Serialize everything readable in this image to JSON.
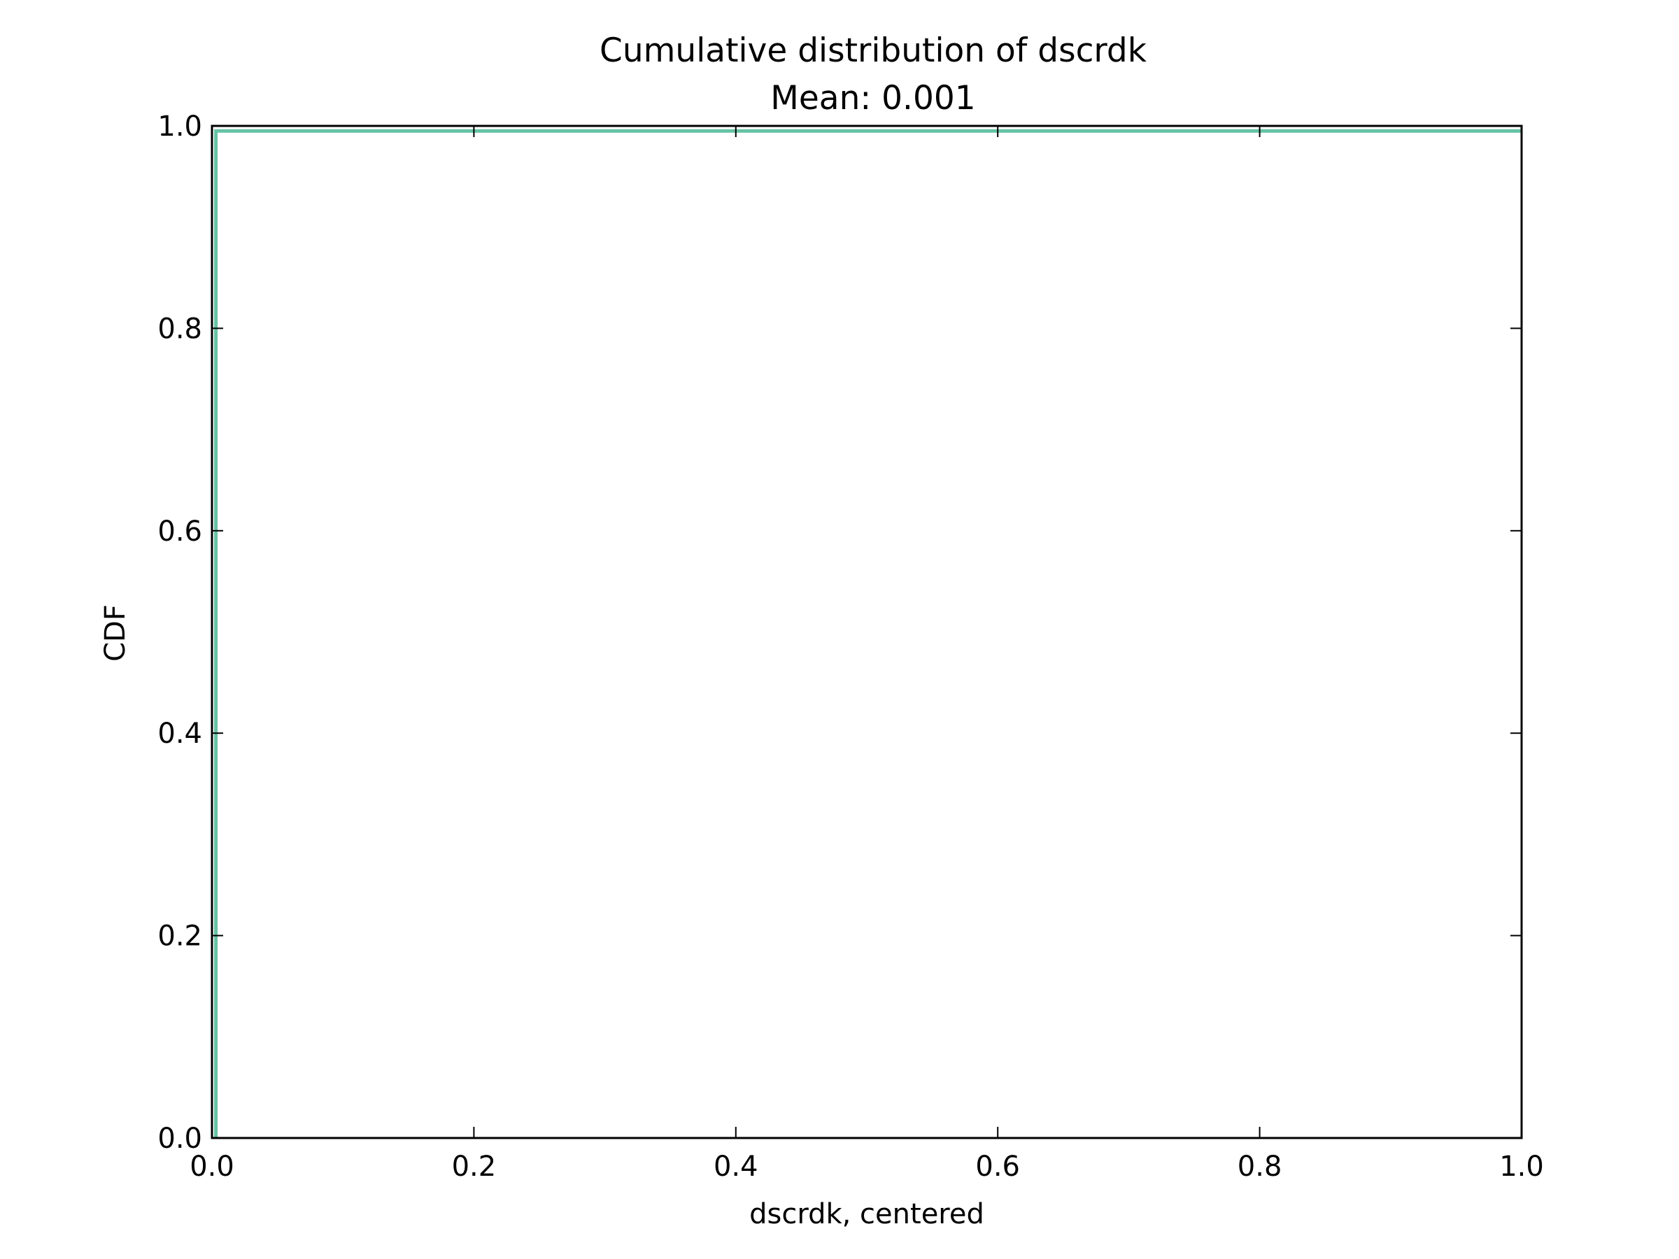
{
  "chart_data": {
    "type": "line",
    "title": "Cumulative distribution of dscrdk",
    "subtitle": "Mean: 0.001",
    "xlabel": "dscrdk, centered",
    "ylabel": "CDF",
    "xlim": [
      0.0,
      1.0
    ],
    "ylim": [
      0.0,
      1.0
    ],
    "x_ticks": [
      "0.0",
      "0.2",
      "0.4",
      "0.6",
      "0.8",
      "1.0"
    ],
    "y_ticks": [
      "0.0",
      "0.2",
      "0.4",
      "0.6",
      "0.8",
      "1.0"
    ],
    "grid": false,
    "series": [
      {
        "color": "#66c2a5",
        "x": [
          0.003,
          0.003,
          1.0
        ],
        "y": [
          0.0,
          0.995,
          0.995
        ]
      }
    ]
  }
}
